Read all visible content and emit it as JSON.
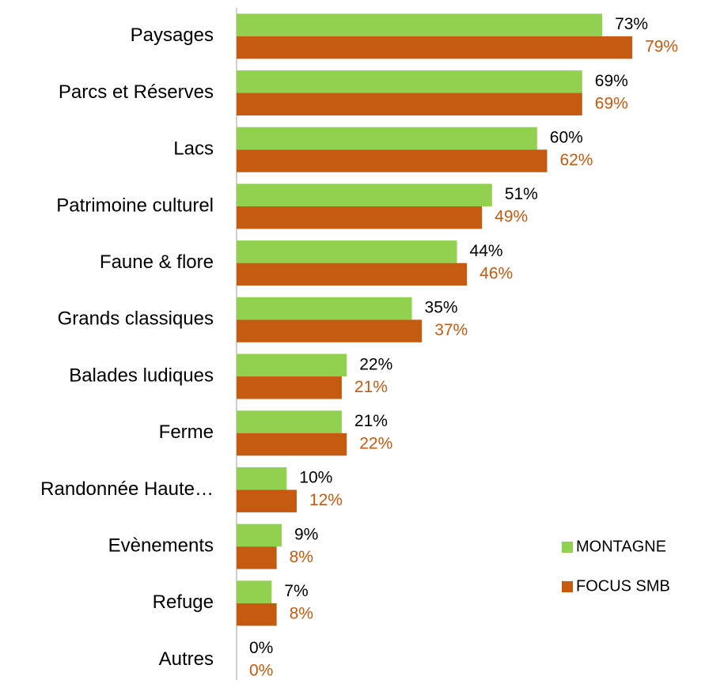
{
  "chart_data": {
    "type": "hbar",
    "categories": [
      "Paysages",
      "Parcs et Réserves",
      "Lacs",
      "Patrimoine culturel",
      "Faune & flore",
      "Grands classiques",
      "Balades ludiques",
      "Ferme",
      "Randonnée Haute…",
      "Evènements",
      "Refuge",
      "Autres"
    ],
    "series": [
      {
        "name": "MONTAGNE",
        "color": "#92d050",
        "label_color": "#000000",
        "values": [
          73,
          69,
          60,
          51,
          44,
          35,
          22,
          21,
          10,
          9,
          7,
          0
        ],
        "value_labels": [
          "73%",
          "69%",
          "60%",
          "51%",
          "44%",
          "35%",
          "22%",
          "21%",
          "10%",
          "9%",
          "7%",
          "0%"
        ]
      },
      {
        "name": "FOCUS SMB",
        "color": "#c55a11",
        "label_color": "#c55a11",
        "values": [
          79,
          69,
          62,
          49,
          46,
          37,
          21,
          22,
          12,
          8,
          8,
          0
        ],
        "value_labels": [
          "79%",
          "69%",
          "62%",
          "49%",
          "46%",
          "37%",
          "21%",
          "22%",
          "12%",
          "8%",
          "8%",
          "0%"
        ]
      }
    ],
    "legend": "right"
  }
}
